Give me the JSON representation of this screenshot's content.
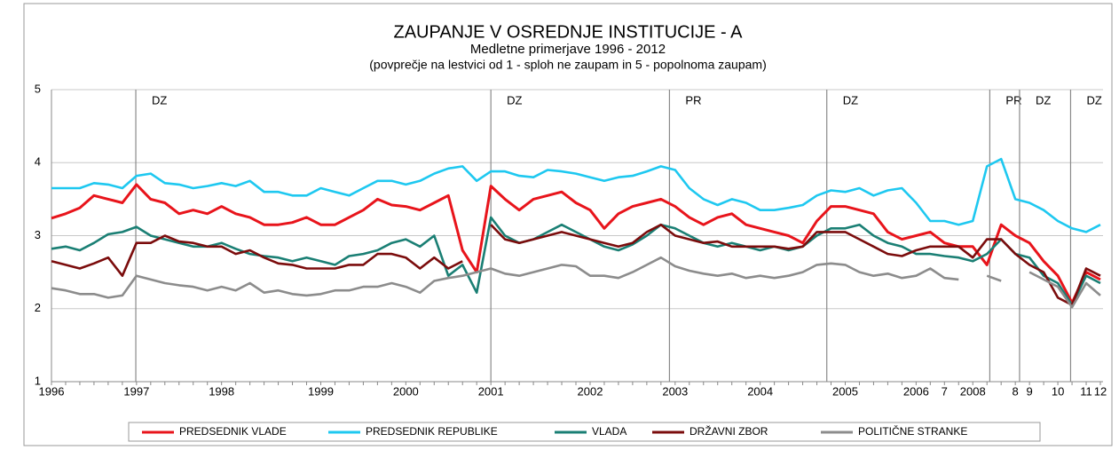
{
  "chart_data": {
    "type": "line",
    "title": "ZAUPANJE V OSREDNJE INSTITUCIJE - A",
    "subtitle": "Medletne primerjave 1996 - 2012",
    "note": "(povprečje na lestvici od 1 - sploh ne zaupam in 5 - popolnoma zaupam)",
    "categories": [
      "1996",
      null,
      null,
      null,
      null,
      null,
      "1997",
      null,
      null,
      null,
      null,
      null,
      "1998",
      null,
      null,
      null,
      null,
      null,
      null,
      "1999",
      null,
      null,
      null,
      null,
      null,
      "2000",
      null,
      null,
      null,
      null,
      null,
      "2001",
      null,
      null,
      null,
      null,
      null,
      null,
      "2002",
      null,
      null,
      null,
      null,
      null,
      "2003",
      null,
      null,
      null,
      null,
      null,
      "2004",
      null,
      null,
      null,
      null,
      null,
      "2005",
      null,
      null,
      null,
      null,
      "2006",
      null,
      "7",
      null,
      "2008",
      null,
      null,
      "8",
      "9",
      null,
      "10",
      null,
      "11",
      "12"
    ],
    "series": [
      {
        "name": "PREDSEDNIK VLADE",
        "color": "#e8141b",
        "values": [
          3.24,
          3.3,
          3.38,
          3.55,
          3.5,
          3.45,
          3.7,
          3.5,
          3.45,
          3.3,
          3.35,
          3.3,
          3.4,
          3.3,
          3.25,
          3.15,
          3.15,
          3.18,
          3.25,
          3.15,
          3.15,
          3.25,
          3.35,
          3.5,
          3.42,
          3.4,
          3.35,
          3.45,
          3.55,
          2.8,
          2.5,
          3.68,
          3.5,
          3.35,
          3.5,
          3.55,
          3.6,
          3.45,
          3.35,
          3.1,
          3.3,
          3.4,
          3.45,
          3.5,
          3.4,
          3.25,
          3.15,
          3.25,
          3.3,
          3.15,
          3.1,
          3.05,
          3.0,
          2.9,
          3.2,
          3.4,
          3.4,
          3.35,
          3.3,
          3.05,
          2.95,
          3.0,
          3.05,
          2.9,
          2.85,
          2.85,
          2.6,
          3.15,
          3.0,
          2.9,
          2.65,
          2.45,
          2.08,
          2.5,
          2.4
        ]
      },
      {
        "name": "PREDSEDNIK REPUBLIKE",
        "color": "#1ec8f0",
        "values": [
          3.65,
          3.65,
          3.65,
          3.72,
          3.7,
          3.65,
          3.82,
          3.85,
          3.72,
          3.7,
          3.65,
          3.68,
          3.72,
          3.68,
          3.75,
          3.6,
          3.6,
          3.55,
          3.55,
          3.65,
          3.6,
          3.55,
          3.65,
          3.75,
          3.75,
          3.7,
          3.75,
          3.85,
          3.92,
          3.95,
          3.75,
          3.88,
          3.88,
          3.82,
          3.8,
          3.9,
          3.88,
          3.85,
          3.8,
          3.75,
          3.8,
          3.82,
          3.88,
          3.95,
          3.9,
          3.65,
          3.5,
          3.42,
          3.5,
          3.45,
          3.35,
          3.35,
          3.38,
          3.42,
          3.55,
          3.62,
          3.6,
          3.65,
          3.55,
          3.62,
          3.65,
          3.45,
          3.2,
          3.2,
          3.15,
          3.2,
          3.95,
          4.05,
          3.5,
          3.45,
          3.35,
          3.2,
          3.1,
          3.05,
          3.15
        ]
      },
      {
        "name": "VLADA",
        "color": "#1a7f74",
        "values": [
          2.82,
          2.85,
          2.8,
          2.9,
          3.02,
          3.05,
          3.12,
          3.0,
          2.95,
          2.9,
          2.85,
          2.85,
          2.9,
          2.82,
          2.75,
          2.72,
          2.7,
          2.65,
          2.7,
          2.65,
          2.6,
          2.72,
          2.75,
          2.8,
          2.9,
          2.95,
          2.85,
          3.0,
          2.45,
          2.6,
          2.22,
          3.25,
          3.0,
          2.9,
          2.95,
          3.05,
          3.15,
          3.05,
          2.95,
          2.85,
          2.8,
          2.88,
          3.0,
          3.15,
          3.1,
          3.0,
          2.9,
          2.85,
          2.9,
          2.85,
          2.8,
          2.85,
          2.8,
          2.85,
          3.0,
          3.1,
          3.1,
          3.15,
          3.0,
          2.9,
          2.85,
          2.75,
          2.75,
          2.72,
          2.7,
          2.65,
          2.75,
          2.95,
          2.75,
          2.7,
          2.45,
          2.35,
          2.05,
          2.45,
          2.35
        ]
      },
      {
        "name": "DRŽAVNI ZBOR",
        "color": "#7b0c0c",
        "values": [
          2.65,
          2.6,
          2.55,
          2.62,
          2.7,
          2.45,
          2.9,
          2.9,
          3.0,
          2.92,
          2.9,
          2.85,
          2.85,
          2.75,
          2.8,
          2.7,
          2.62,
          2.6,
          2.55,
          2.55,
          2.55,
          2.6,
          2.6,
          2.75,
          2.75,
          2.7,
          2.55,
          2.7,
          2.55,
          2.65,
          null,
          3.15,
          2.95,
          2.9,
          2.95,
          3.0,
          3.05,
          3.0,
          2.95,
          2.9,
          2.85,
          2.9,
          3.05,
          3.15,
          3.0,
          2.95,
          2.9,
          2.92,
          2.85,
          2.85,
          2.85,
          2.85,
          2.82,
          2.85,
          3.05,
          3.05,
          3.05,
          2.95,
          2.85,
          2.75,
          2.72,
          2.8,
          2.85,
          2.85,
          2.85,
          2.7,
          2.95,
          2.95,
          2.75,
          2.6,
          2.5,
          2.15,
          2.05,
          2.55,
          2.45
        ]
      },
      {
        "name": "POLITIČNE STRANKE",
        "color": "#8c8c8c",
        "values": [
          2.28,
          2.25,
          2.2,
          2.2,
          2.15,
          2.18,
          2.45,
          2.4,
          2.35,
          2.32,
          2.3,
          2.25,
          2.3,
          2.25,
          2.35,
          2.22,
          2.25,
          2.2,
          2.18,
          2.2,
          2.25,
          2.25,
          2.3,
          2.3,
          2.35,
          2.3,
          2.22,
          2.38,
          2.42,
          2.45,
          2.5,
          2.55,
          2.48,
          2.45,
          2.5,
          2.55,
          2.6,
          2.58,
          2.45,
          2.45,
          2.42,
          2.5,
          2.6,
          2.7,
          2.58,
          2.52,
          2.48,
          2.45,
          2.48,
          2.42,
          2.45,
          2.42,
          2.45,
          2.5,
          2.6,
          2.62,
          2.6,
          2.5,
          2.45,
          2.48,
          2.42,
          2.45,
          2.55,
          2.42,
          2.4,
          null,
          2.45,
          2.38,
          null,
          2.5,
          2.4,
          2.3,
          2.02,
          2.35,
          2.18
        ]
      }
    ],
    "ylim": [
      1,
      5
    ],
    "yticks": [
      1,
      2,
      3,
      4,
      5
    ],
    "grid": true,
    "legend": "bottom",
    "annotations": [
      {
        "x": 5.95,
        "label": "DZ"
      },
      {
        "x": 31.0,
        "label": "DZ"
      },
      {
        "x": 43.6,
        "label": "PR"
      },
      {
        "x": 54.7,
        "label": "DZ"
      },
      {
        "x": 66.2,
        "label": "PR"
      },
      {
        "x": 68.3,
        "label": "DZ"
      },
      {
        "x": 71.9,
        "label": "DZ"
      }
    ]
  }
}
